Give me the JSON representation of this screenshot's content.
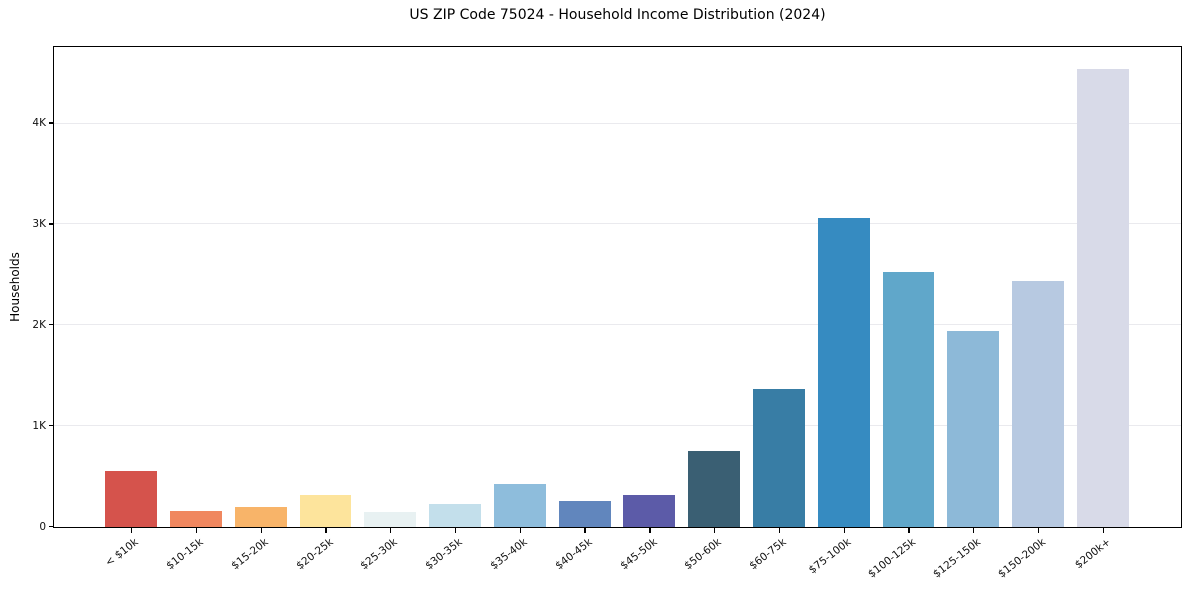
{
  "chart_data": {
    "type": "bar",
    "title": "US ZIP Code 75024 - Household Income Distribution (2024)",
    "xlabel": "",
    "ylabel": "Households",
    "categories": [
      "< $10k",
      "$10-15k",
      "$15-20k",
      "$20-25k",
      "$25-30k",
      "$30-35k",
      "$35-40k",
      "$40-45k",
      "$45-50k",
      "$50-60k",
      "$60-75k",
      "$75-100k",
      "$100-125k",
      "$125-150k",
      "$150-200k",
      "$200k+"
    ],
    "values": [
      555,
      160,
      195,
      320,
      150,
      225,
      430,
      260,
      320,
      755,
      1370,
      3060,
      2530,
      1940,
      2440,
      4540
    ],
    "bar_colors": [
      "#d5534c",
      "#f0875f",
      "#f8b469",
      "#fde49c",
      "#e8f1f2",
      "#c3dfeb",
      "#8ebddc",
      "#6186bd",
      "#5c5ba8",
      "#3a5f73",
      "#387da5",
      "#368bc1",
      "#60a7ca",
      "#8db9d8",
      "#b7c9e1",
      "#d8dae8"
    ],
    "ylim": [
      0,
      4750
    ],
    "yticks": [
      {
        "value": 0,
        "label": "0"
      },
      {
        "value": 1000,
        "label": "1K"
      },
      {
        "value": 2000,
        "label": "2K"
      },
      {
        "value": 3000,
        "label": "3K"
      },
      {
        "value": 4000,
        "label": "4K"
      }
    ],
    "grid": "horizontal",
    "legend": "none",
    "axis_color": "#000000",
    "grid_color": "#eaeaee",
    "background_color": "#ffffff"
  }
}
